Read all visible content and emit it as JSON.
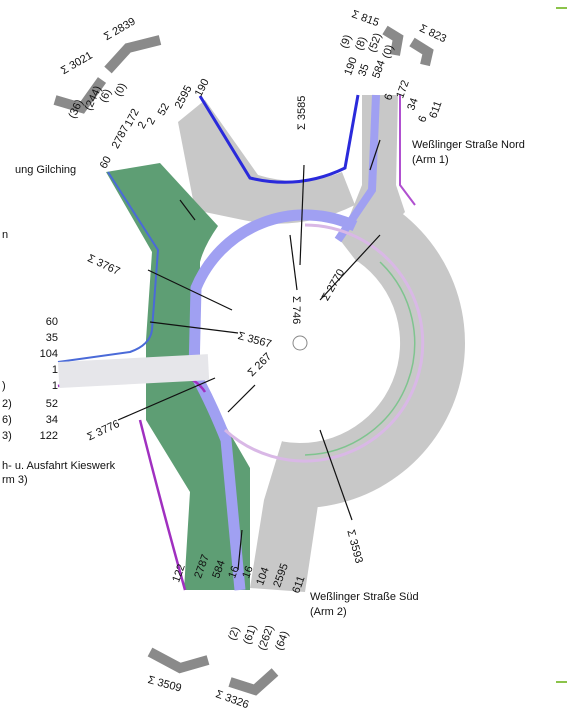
{
  "arrow_totals": [
    "Σ 3021",
    "Σ 2839",
    "Σ 815",
    "Σ 823",
    "Σ 3509",
    "Σ 3326"
  ],
  "section_totals": [
    "Σ 3585",
    "Σ 746",
    "Σ 2770",
    "Σ 3767",
    "Σ 3567",
    "Σ 267",
    "Σ 3776",
    "Σ 3593"
  ],
  "arms": [
    {
      "name": "ung Gilching",
      "counts": [
        "60",
        "2787",
        "172",
        "2",
        "2",
        "52",
        "2595",
        "190"
      ],
      "heavy": [
        "(36)",
        "(244)",
        "(6)",
        "(0)"
      ]
    },
    {
      "name": "Weßlinger Straße Nord",
      "subtitle": "(Arm 1)",
      "counts": [
        "190",
        "35",
        "584",
        "6",
        "172",
        "34",
        "6",
        "611"
      ],
      "heavy": [
        "(9)",
        "(8)",
        "(52)",
        "(0)"
      ]
    },
    {
      "name": "Weßlinger Straße Süd",
      "subtitle": "(Arm 2)",
      "counts": [
        "122",
        "2787",
        "584",
        "16",
        "16",
        "104",
        "2595",
        "611"
      ],
      "heavy": [
        "(2)",
        "(61)",
        "(262)",
        "(64)"
      ]
    },
    {
      "name": "h- u. Ausfahrt Kieswerk",
      "subtitle": "rm 3)",
      "counts": [
        "60",
        "35",
        "104",
        "1",
        "1",
        "52",
        "34",
        "122"
      ],
      "heavy": [
        ")",
        "2)",
        "6)",
        "3)"
      ]
    }
  ],
  "edge_fragment": "n"
}
